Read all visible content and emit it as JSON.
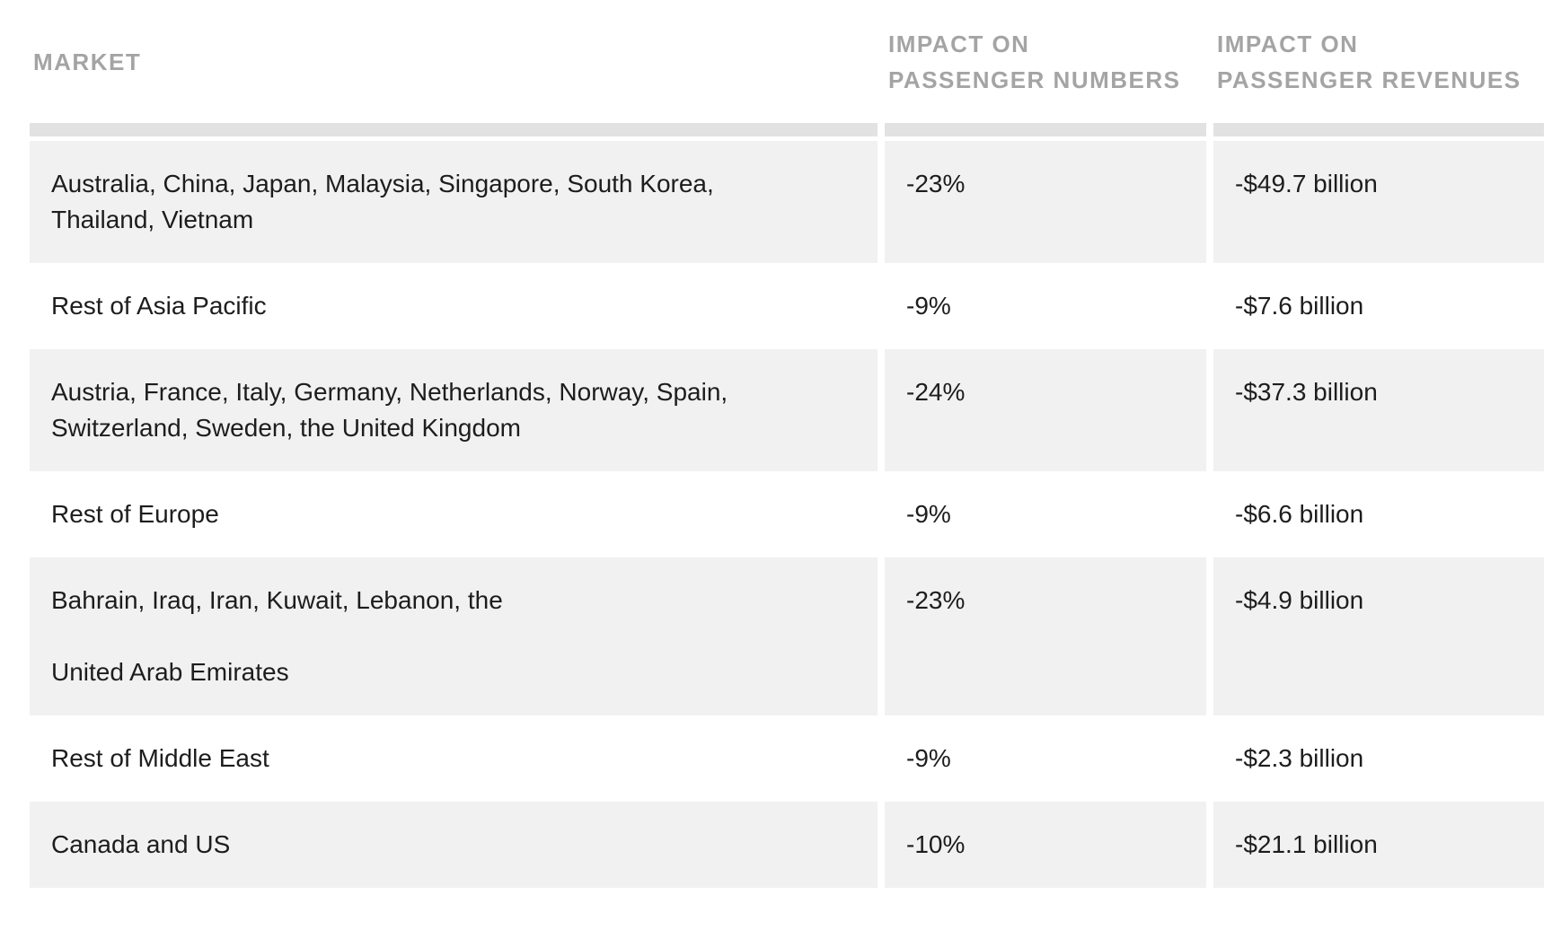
{
  "table": {
    "title": "Market impact table",
    "colors": {
      "row_stripe": "#f1f1f1",
      "header_separator": "#e2e2e2",
      "header_text": "#a4a4a4",
      "body_text": "#1d1d1d",
      "background": "#ffffff"
    },
    "headers": [
      {
        "label": "MARKET",
        "lines": [
          "MARKET"
        ]
      },
      {
        "label": "IMPACT ON PASSENGER NUMBERS",
        "lines": [
          "IMPACT ON",
          "PASSENGER NUMBERS"
        ]
      },
      {
        "label": "IMPACT ON PASSENGER REVENUES",
        "lines": [
          "IMPACT ON",
          "PASSENGER REVENUES"
        ]
      }
    ],
    "rows": [
      {
        "market": [
          "Australia, China, Japan, Malaysia, Singapore, South Korea,",
          "Thailand, Vietnam"
        ],
        "impact_numbers": "-23%",
        "impact_revenues": "-$49.7 billion"
      },
      {
        "market": [
          "Rest of Asia Pacific"
        ],
        "impact_numbers": "-9%",
        "impact_revenues": "-$7.6 billion"
      },
      {
        "market": [
          "Austria, France, Italy, Germany, Netherlands, Norway, Spain,",
          "Switzerland, Sweden, the United Kingdom"
        ],
        "impact_numbers": "-24%",
        "impact_revenues": "-$37.3 billion"
      },
      {
        "market": [
          "Rest of Europe"
        ],
        "impact_numbers": "-9%",
        "impact_revenues": "-$6.6 billion"
      },
      {
        "market": [
          "Bahrain, Iraq, Iran, Kuwait, Lebanon, the",
          "",
          "United Arab Emirates"
        ],
        "impact_numbers": "-23%",
        "impact_revenues": "-$4.9 billion"
      },
      {
        "market": [
          "Rest of Middle East"
        ],
        "impact_numbers": "-9%",
        "impact_revenues": "-$2.3 billion"
      },
      {
        "market": [
          "Canada and US"
        ],
        "impact_numbers": "-10%",
        "impact_revenues": "-$21.1 billion"
      }
    ]
  },
  "chart_data": {
    "type": "table",
    "title": "",
    "columns": [
      "MARKET",
      "IMPACT ON PASSENGER NUMBERS",
      "IMPACT ON PASSENGER REVENUES"
    ],
    "categories": [
      "Australia, China, Japan, Malaysia, Singapore, South Korea, Thailand, Vietnam",
      "Rest of Asia Pacific",
      "Austria, France, Italy, Germany, Netherlands, Norway, Spain, Switzerland, Sweden, the United Kingdom",
      "Rest of Europe",
      "Bahrain, Iraq, Iran, Kuwait, Lebanon, the United Arab Emirates",
      "Rest of Middle East",
      "Canada and US"
    ],
    "series": [
      {
        "name": "Impact on passenger numbers (%)",
        "values": [
          -23,
          -9,
          -24,
          -9,
          -23,
          -9,
          -10
        ]
      },
      {
        "name": "Impact on passenger revenues ($ billion)",
        "values": [
          -49.7,
          -7.6,
          -37.3,
          -6.6,
          -4.9,
          -2.3,
          -21.1
        ]
      }
    ]
  }
}
